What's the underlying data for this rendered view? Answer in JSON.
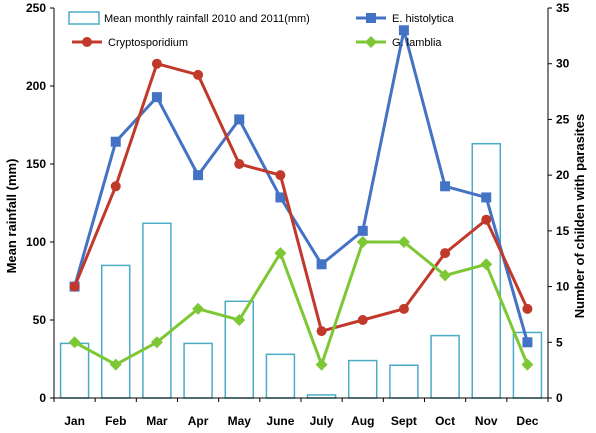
{
  "chart_data": {
    "type": "bar+line",
    "categories": [
      "Jan",
      "Feb",
      "Mar",
      "Apr",
      "May",
      "June",
      "July",
      "Aug",
      "Sept",
      "Oct",
      "Nov",
      "Dec"
    ],
    "bars": {
      "name": "Mean monthly rainfall 2010 and 2011(mm)",
      "values": [
        35,
        85,
        112,
        35,
        62,
        28,
        2,
        24,
        21,
        40,
        163,
        42
      ],
      "axis": "left",
      "color": "#4bacc6"
    },
    "series": [
      {
        "name": "E. histolytica",
        "values": [
          10,
          23,
          27,
          20,
          25,
          18,
          12,
          15,
          33,
          19,
          18,
          5
        ],
        "axis": "right",
        "color": "#4472c4",
        "marker": "square"
      },
      {
        "name": "Cryptosporidium",
        "values": [
          10,
          19,
          30,
          29,
          21,
          20,
          6,
          7,
          8,
          13,
          16,
          8
        ],
        "axis": "right",
        "color": "#c0392b",
        "marker": "circle"
      },
      {
        "name": "G. lamblia",
        "values": [
          5,
          3,
          5,
          8,
          7,
          13,
          3,
          14,
          14,
          11,
          12,
          3
        ],
        "axis": "right",
        "color": "#7dc734",
        "marker": "diamond"
      }
    ],
    "ylabel_left": "Mean rainfall (mm)",
    "ylabel_right": "Number of childen with parasites",
    "ylim_left": [
      0,
      250
    ],
    "yticks_left": [
      0,
      50,
      100,
      150,
      200,
      250
    ],
    "ylim_right": [
      0,
      35
    ],
    "yticks_right": [
      0,
      5,
      10,
      15,
      20,
      25,
      30,
      35
    ],
    "grid": false,
    "legend": "top"
  }
}
